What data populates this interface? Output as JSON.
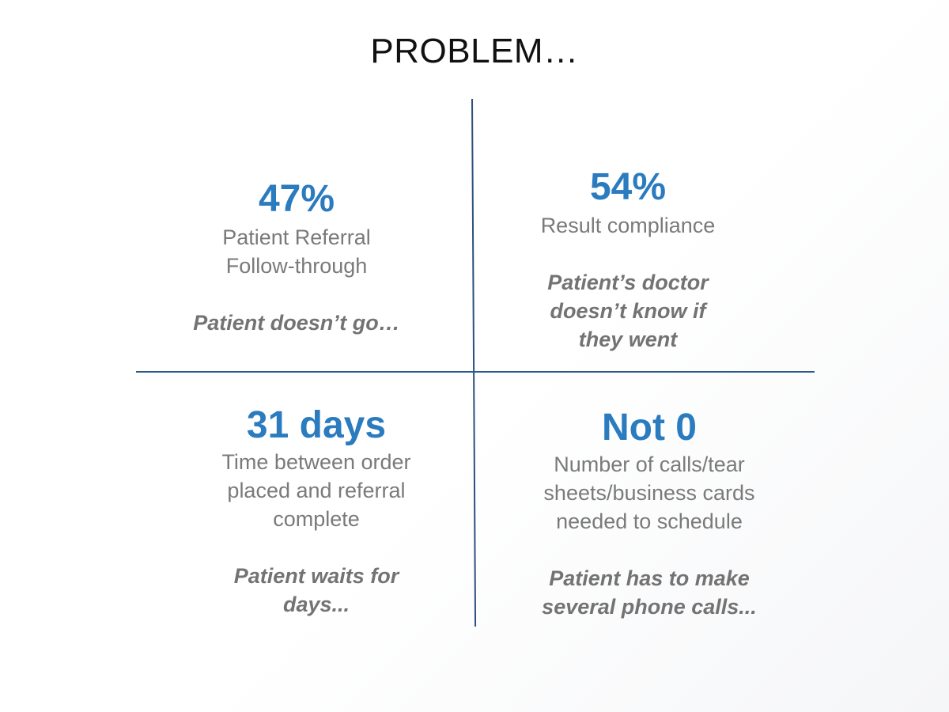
{
  "title": "PROBLEM…",
  "quadrants": [
    {
      "stat": "47%",
      "label": "Patient Referral\nFollow-through",
      "note": "Patient doesn’t go…"
    },
    {
      "stat": "54%",
      "label": "Result compliance",
      "note": "Patient’s doctor\ndoesn’t know if\nthey went"
    },
    {
      "stat": "31 days",
      "label": "Time between order\nplaced and referral\ncomplete",
      "note": "Patient waits for\ndays..."
    },
    {
      "stat": "Not 0",
      "label": "Number of calls/tear\nsheets/business cards\nneeded to schedule",
      "note": "Patient has to make\nseveral phone calls..."
    }
  ],
  "colors": {
    "stat": "#2b7bbf",
    "label": "#7a7a7a",
    "divider": "#2b4f7e"
  }
}
